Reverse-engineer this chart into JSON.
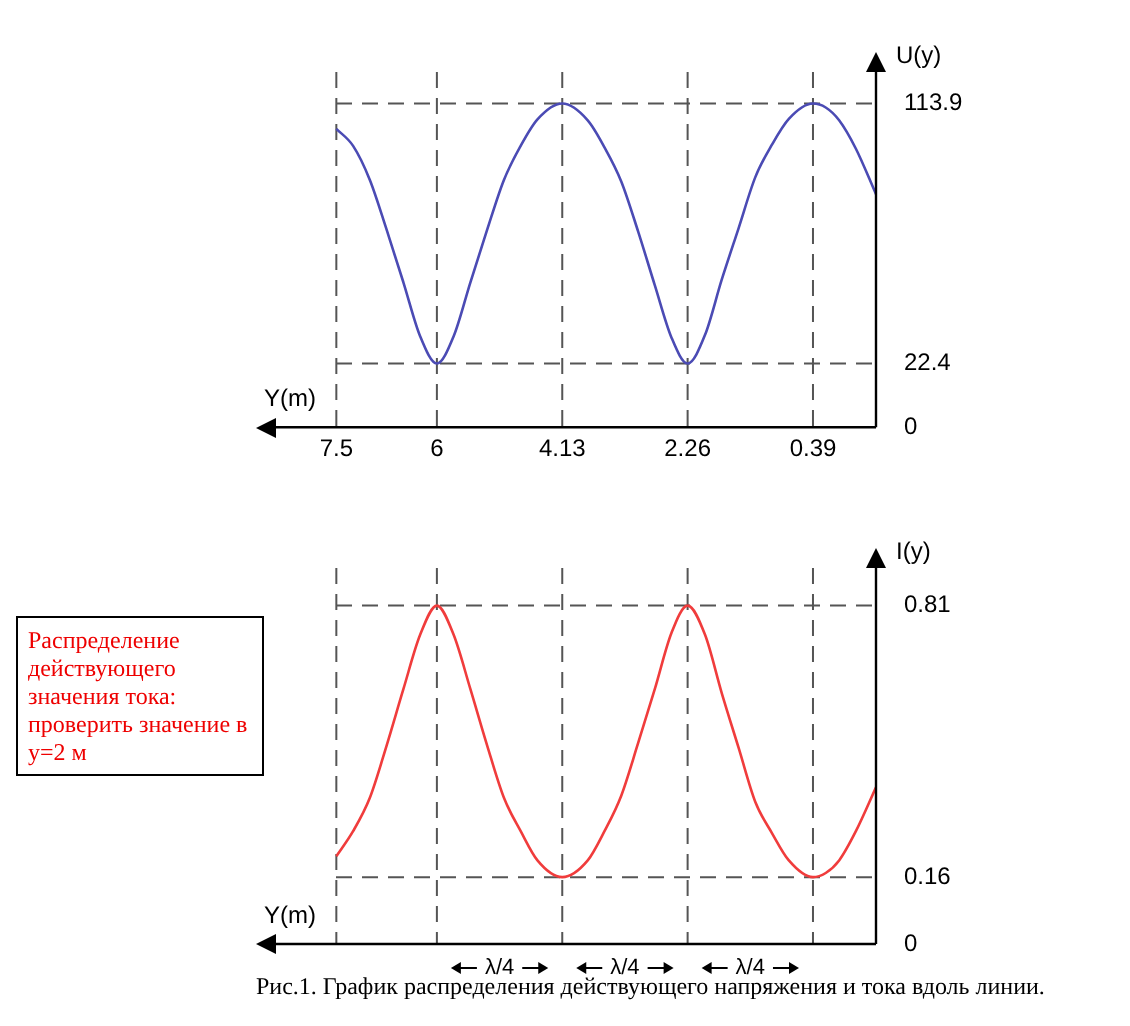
{
  "chart_data": [
    {
      "type": "line",
      "xlabel": "Y(m)",
      "ylabel": "U(y)",
      "x": [
        7.5,
        7.25,
        7.0,
        6.75,
        6.5,
        6.25,
        6.0,
        5.75,
        5.5,
        5.25,
        5.0,
        4.75,
        4.5,
        4.13,
        3.75,
        3.5,
        3.25,
        3.0,
        2.75,
        2.5,
        2.26,
        2.0,
        1.75,
        1.5,
        1.25,
        1.0,
        0.75,
        0.39,
        0.2,
        0.0,
        -0.25,
        -0.55
      ],
      "series": [
        {
          "color": "#4b4bb4",
          "values": [
            105,
            99,
            87,
            69.5,
            51,
            32,
            22.4,
            32,
            51,
            69.5,
            87,
            99,
            108.3,
            113.9,
            108,
            98.5,
            86.5,
            69,
            50,
            31.5,
            22.4,
            32.5,
            52,
            70,
            88,
            99.5,
            108.5,
            113.9,
            112.5,
            108,
            98,
            82
          ]
        }
      ],
      "xlim": [
        8.4,
        -0.55
      ],
      "xticks": [
        7.5,
        6,
        4.13,
        2.26,
        0.39
      ],
      "ylim": [
        0,
        125
      ],
      "yticks": [
        0,
        22.4,
        113.9
      ],
      "ref_lines": [
        {
          "axis": "x",
          "value": 7.5,
          "line_style": "dashed"
        },
        {
          "axis": "x",
          "value": 6,
          "line_style": "dashed"
        },
        {
          "axis": "x",
          "value": 4.13,
          "line_style": "dashed"
        },
        {
          "axis": "x",
          "value": 2.26,
          "line_style": "dashed"
        },
        {
          "axis": "x",
          "value": 0.39,
          "line_style": "dashed"
        },
        {
          "axis": "y",
          "value": 22.4,
          "line_style": "dashed"
        },
        {
          "axis": "y",
          "value": 113.9,
          "line_style": "dashed"
        }
      ],
      "grid": false,
      "legend": false,
      "marker": "none",
      "line_style": "solid"
    },
    {
      "type": "line",
      "xlabel": "Y(m)",
      "ylabel": "I(y)",
      "x": [
        7.5,
        7.25,
        7.0,
        6.75,
        6.5,
        6.25,
        6.0,
        5.75,
        5.5,
        5.25,
        5.0,
        4.75,
        4.5,
        4.13,
        3.75,
        3.5,
        3.25,
        3.0,
        2.75,
        2.5,
        2.26,
        2.0,
        1.75,
        1.5,
        1.25,
        1.0,
        0.75,
        0.39,
        0.2,
        0.0,
        -0.25,
        -0.55
      ],
      "series": [
        {
          "color": "#f03c3c",
          "values": [
            0.21,
            0.27,
            0.35,
            0.475,
            0.61,
            0.74,
            0.81,
            0.74,
            0.61,
            0.475,
            0.35,
            0.27,
            0.2,
            0.16,
            0.2,
            0.27,
            0.355,
            0.48,
            0.61,
            0.745,
            0.81,
            0.74,
            0.6,
            0.47,
            0.34,
            0.265,
            0.2,
            0.16,
            0.17,
            0.2,
            0.27,
            0.375
          ]
        }
      ],
      "xlim": [
        8.4,
        -0.55
      ],
      "xticks": [
        7.5,
        6,
        4.13,
        2.26,
        0.39
      ],
      "ylim": [
        0,
        0.9
      ],
      "yticks": [
        0,
        0.16,
        0.81
      ],
      "tick_labels": "y",
      "ref_lines": [
        {
          "axis": "x",
          "value": 7.5,
          "line_style": "dashed"
        },
        {
          "axis": "x",
          "value": 6,
          "line_style": "dashed"
        },
        {
          "axis": "x",
          "value": 4.13,
          "line_style": "dashed"
        },
        {
          "axis": "x",
          "value": 2.26,
          "line_style": "dashed"
        },
        {
          "axis": "x",
          "value": 0.39,
          "line_style": "dashed"
        },
        {
          "axis": "y",
          "value": 0.16,
          "line_style": "dashed"
        },
        {
          "axis": "y",
          "value": 0.81,
          "line_style": "dashed"
        }
      ],
      "annotations": [
        "Распределение действующего значения тока: проверить значение в y=2 м",
        "λ/4",
        "λ/4",
        "λ/4",
        "Рис.1. График распределения действующего напряжения и тока вдоль линии."
      ],
      "grid": false,
      "legend": false,
      "marker": "none",
      "line_style": "solid"
    }
  ]
}
